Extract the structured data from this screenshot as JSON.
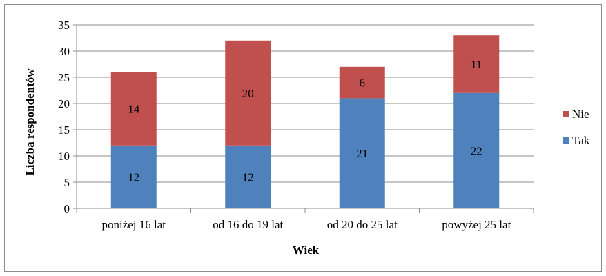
{
  "chart_data": {
    "type": "bar",
    "stacked": true,
    "categories": [
      "poniżej 16 lat",
      "od 16 do 19 lat",
      "od 20 do 25 lat",
      "powyżej 25 lat"
    ],
    "series": [
      {
        "name": "Tak",
        "values": [
          12,
          12,
          21,
          22
        ],
        "color": "#4f81bd"
      },
      {
        "name": "Nie",
        "values": [
          14,
          20,
          6,
          11
        ],
        "color": "#c0504d"
      }
    ],
    "title": "",
    "xlabel": "Wiek",
    "ylabel": "Liczba respondentów",
    "ylim": [
      0,
      35
    ],
    "yticks": [
      0,
      5,
      10,
      15,
      20,
      25,
      30,
      35
    ],
    "grid": true,
    "legend_position": "right",
    "data_labels": true
  }
}
